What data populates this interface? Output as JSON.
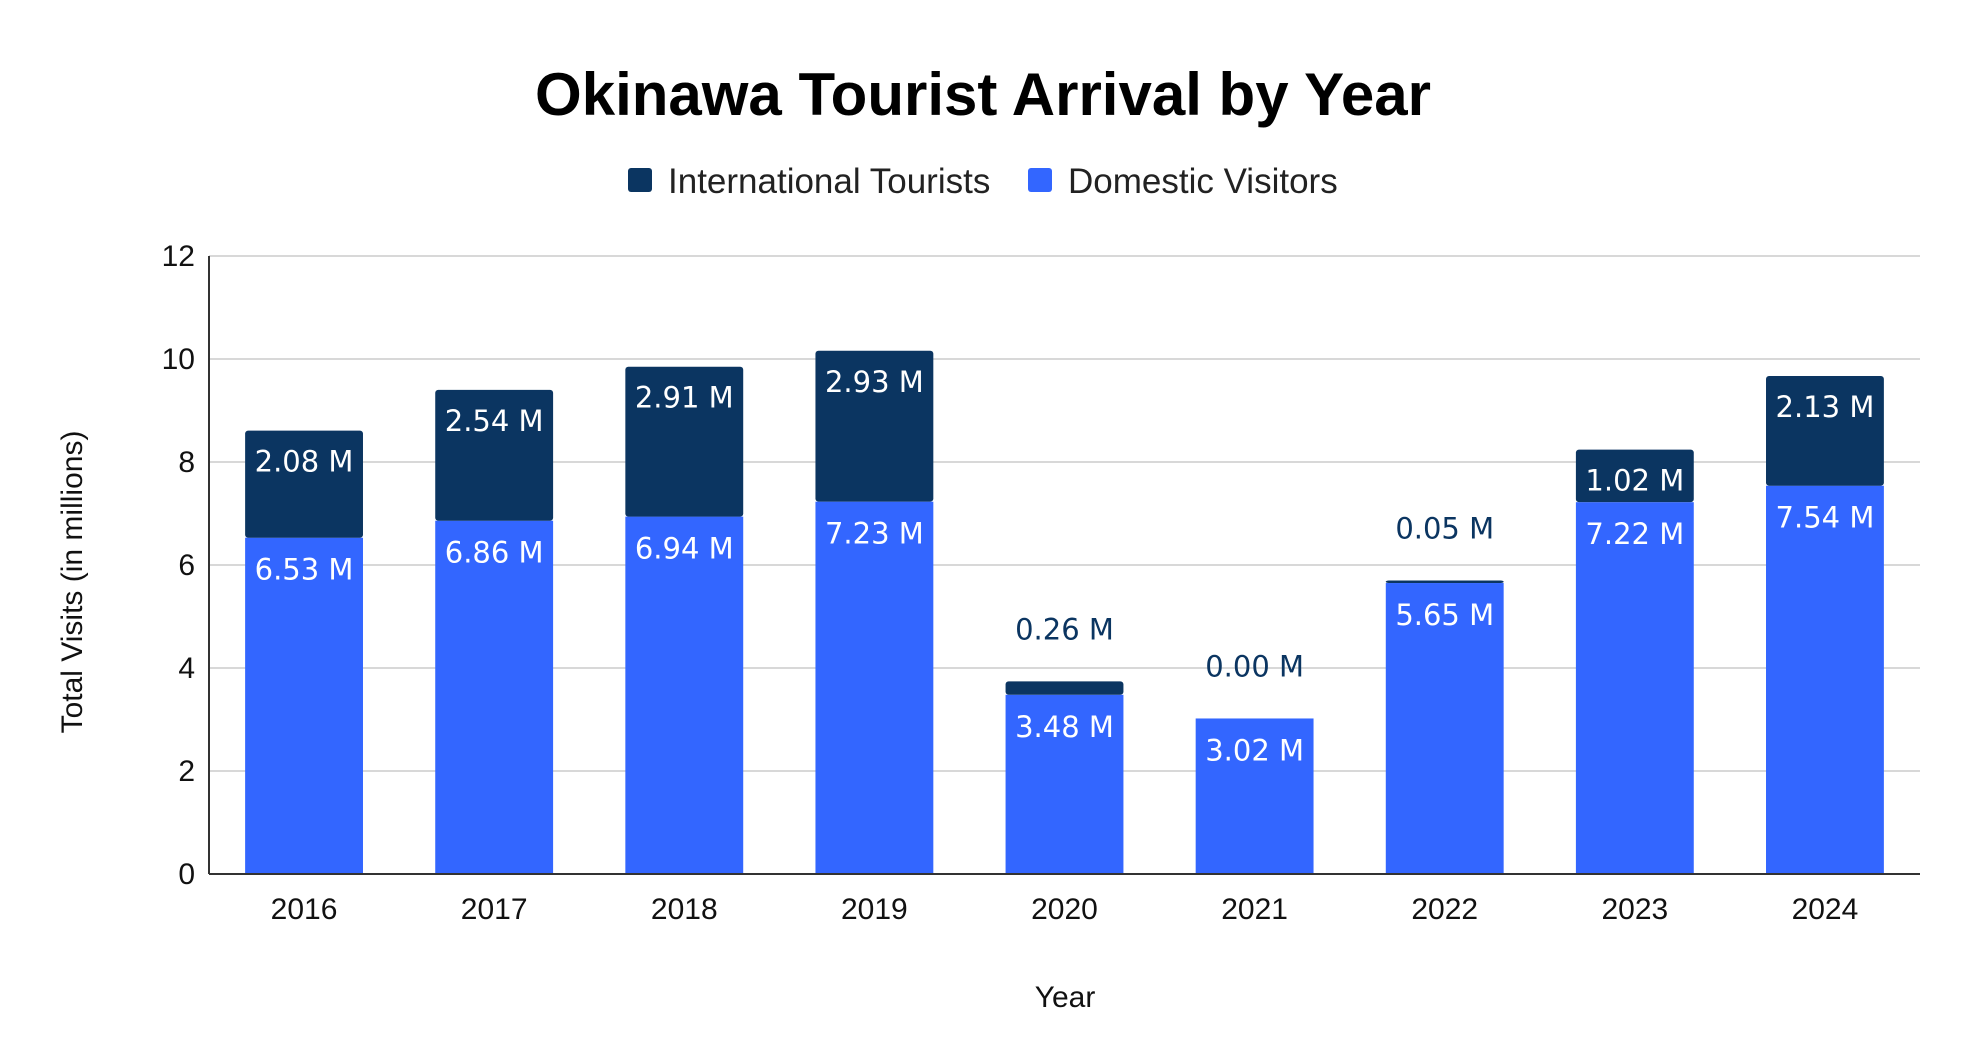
{
  "colors": {
    "international": "#0b3561",
    "domestic": "#3366ff",
    "gridline": "#cccccc",
    "axis": "#333333",
    "label_inside": "#ffffff",
    "label_above": "#0b3561"
  },
  "chart_data": {
    "type": "bar",
    "stacked": true,
    "title": "Okinawa Tourist Arrival by Year",
    "xlabel": "Year",
    "ylabel": "Total Visits (in millions)",
    "ylim": [
      0,
      12
    ],
    "yticks": [
      0,
      2,
      4,
      6,
      8,
      10,
      12
    ],
    "grid": true,
    "legend_position": "top",
    "categories": [
      "2016",
      "2017",
      "2018",
      "2019",
      "2020",
      "2021",
      "2022",
      "2023",
      "2024"
    ],
    "series": [
      {
        "name": "International Tourists",
        "values": [
          2.08,
          2.54,
          2.91,
          2.93,
          0.26,
          0.0,
          0.05,
          1.02,
          2.13
        ],
        "labels": [
          "2.08 M",
          "2.54 M",
          "2.91 M",
          "2.93 M",
          "0.26 M",
          "0.00 M",
          "0.05 M",
          "1.02 M",
          "2.13 M"
        ]
      },
      {
        "name": "Domestic Visitors",
        "values": [
          6.53,
          6.86,
          6.94,
          7.23,
          3.48,
          3.02,
          5.65,
          7.22,
          7.54
        ],
        "labels": [
          "6.53 M",
          "6.86 M",
          "6.94 M",
          "7.23 M",
          "3.48 M",
          "3.02 M",
          "5.65 M",
          "7.22 M",
          "7.54 M"
        ]
      }
    ]
  }
}
